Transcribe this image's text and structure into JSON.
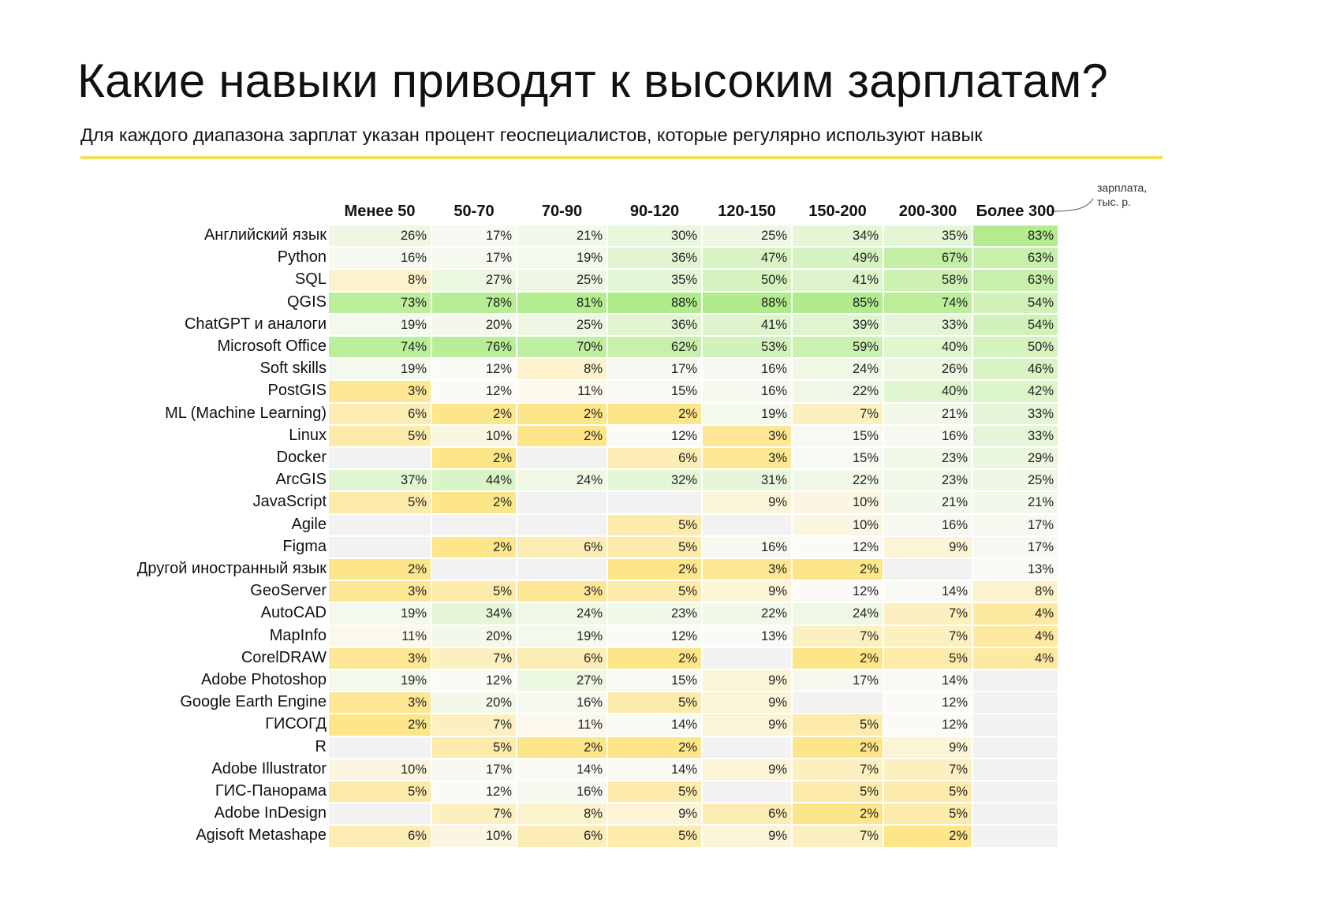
{
  "header": {
    "title": "Какие навыки приводят к высоким зарплатам?",
    "subtitle": "Для каждого диапазона зарплат указан процент геоспециалистов, которые регулярно используют навык",
    "units_note_line1": "зарплата,",
    "units_note_line2": "тыс. р."
  },
  "colors": {
    "accent_rule": "#f2df5e",
    "empty_cell": "#f2f2f2",
    "low": "#fde589",
    "mid": "#fbfaf7",
    "high": "#b1ec8c"
  },
  "chart_data": {
    "type": "heatmap",
    "value_unit": "%",
    "columns": [
      "Менее 50",
      "50-70",
      "70-90",
      "90-120",
      "120-150",
      "150-200",
      "200-300",
      "Более 300"
    ],
    "rows": [
      "Английский язык",
      "Python",
      "SQL",
      "QGIS",
      "ChatGPT и аналоги",
      "Microsoft Office",
      "Soft skills",
      "PostGIS",
      "ML (Machine Learning)",
      "Linux",
      "Docker",
      "ArcGIS",
      "JavaScript",
      "Agile",
      "Figma",
      "Другой иностранный язык",
      "GeoServer",
      "AutoCAD",
      "MapInfo",
      "CorelDRAW",
      "Adobe Photoshop",
      "Google Earth Engine",
      "ГИСОГД",
      "R",
      "Adobe Illustrator",
      "ГИС-Панорама",
      "Adobe InDesign",
      "Agisoft Metashape"
    ],
    "values": [
      [
        26,
        17,
        21,
        30,
        25,
        34,
        35,
        83
      ],
      [
        16,
        17,
        19,
        36,
        47,
        49,
        67,
        63
      ],
      [
        8,
        27,
        25,
        35,
        50,
        41,
        58,
        63
      ],
      [
        73,
        78,
        81,
        88,
        88,
        85,
        74,
        54
      ],
      [
        19,
        20,
        25,
        36,
        41,
        39,
        33,
        54
      ],
      [
        74,
        76,
        70,
        62,
        53,
        59,
        40,
        50
      ],
      [
        19,
        12,
        8,
        17,
        16,
        24,
        26,
        46
      ],
      [
        3,
        12,
        11,
        15,
        16,
        22,
        40,
        42
      ],
      [
        6,
        2,
        2,
        2,
        19,
        7,
        21,
        33
      ],
      [
        5,
        10,
        2,
        12,
        3,
        15,
        16,
        33
      ],
      [
        null,
        2,
        null,
        6,
        3,
        15,
        23,
        29
      ],
      [
        37,
        44,
        24,
        32,
        31,
        22,
        23,
        25
      ],
      [
        5,
        2,
        null,
        null,
        9,
        10,
        21,
        21
      ],
      [
        null,
        null,
        null,
        5,
        null,
        10,
        16,
        17
      ],
      [
        null,
        2,
        6,
        5,
        16,
        12,
        9,
        17
      ],
      [
        2,
        null,
        null,
        2,
        3,
        2,
        null,
        13
      ],
      [
        3,
        5,
        3,
        5,
        9,
        12,
        14,
        8
      ],
      [
        19,
        34,
        24,
        23,
        22,
        24,
        7,
        4
      ],
      [
        11,
        20,
        19,
        12,
        13,
        7,
        7,
        4
      ],
      [
        3,
        7,
        6,
        2,
        null,
        2,
        5,
        4
      ],
      [
        19,
        12,
        27,
        15,
        9,
        17,
        14,
        null
      ],
      [
        3,
        20,
        16,
        5,
        9,
        null,
        12,
        null
      ],
      [
        2,
        7,
        11,
        14,
        9,
        5,
        12,
        null
      ],
      [
        null,
        5,
        2,
        2,
        null,
        2,
        9,
        null
      ],
      [
        10,
        17,
        14,
        14,
        9,
        7,
        7,
        null
      ],
      [
        5,
        12,
        16,
        5,
        null,
        5,
        5,
        null
      ],
      [
        null,
        7,
        8,
        9,
        6,
        2,
        5,
        null
      ],
      [
        6,
        10,
        6,
        5,
        9,
        7,
        2,
        null
      ]
    ]
  }
}
